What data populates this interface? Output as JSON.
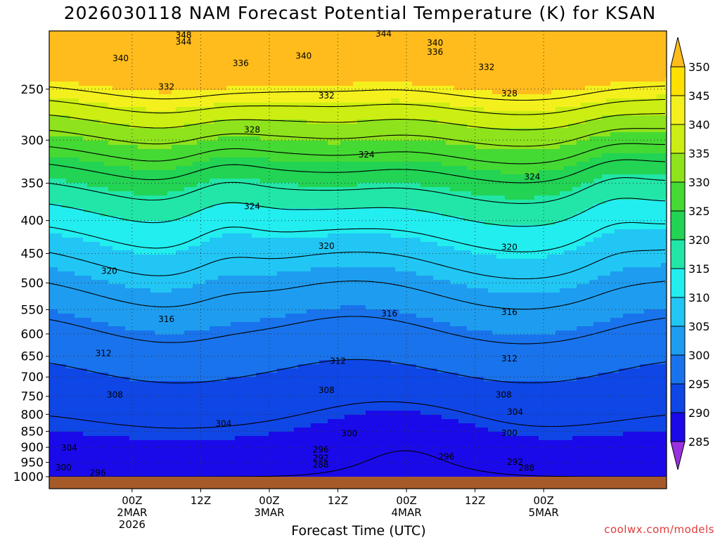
{
  "title": "2026030118 NAM Forecast Potential Temperature (K) for KSAN",
  "xlabel": "Forecast Time (UTC)",
  "credit": "coolwx.com/models",
  "chart_data": {
    "type": "heatmap",
    "variable": "Potential Temperature (K)",
    "y_axis": {
      "label": "",
      "scale": "log-pressure",
      "reversed": true,
      "range": [
        1000,
        200
      ],
      "ticks": [
        250,
        300,
        350,
        400,
        450,
        500,
        550,
        600,
        650,
        700,
        750,
        800,
        850,
        900,
        950,
        1000
      ]
    },
    "x_axis": {
      "range_hours": [
        -8.5,
        99.5
      ],
      "ticks": [
        {
          "hour": 6,
          "lines": [
            "00Z",
            "2MAR",
            "2026"
          ]
        },
        {
          "hour": 18,
          "lines": [
            "12Z"
          ]
        },
        {
          "hour": 30,
          "lines": [
            "00Z",
            "3MAR"
          ]
        },
        {
          "hour": 42,
          "lines": [
            "12Z"
          ]
        },
        {
          "hour": 54,
          "lines": [
            "00Z",
            "4MAR"
          ]
        },
        {
          "hour": 66,
          "lines": [
            "12Z"
          ]
        },
        {
          "hour": 78,
          "lines": [
            "00Z",
            "5MAR"
          ]
        }
      ]
    },
    "colorbar": {
      "levels": [
        285,
        290,
        295,
        300,
        305,
        310,
        315,
        320,
        325,
        330,
        335,
        340,
        345,
        350
      ],
      "colors": [
        "#9a30e0",
        "#6612d6",
        "#1a0aea",
        "#0f46e6",
        "#1973ec",
        "#1e9df0",
        "#22c6f4",
        "#22eef0",
        "#21e6a8",
        "#22d354",
        "#45d934",
        "#8ee31c",
        "#ccee12",
        "#f4f01e",
        "#ffe000",
        "#ffbc1c"
      ]
    },
    "ground_color": "#a65a2a",
    "grid": true,
    "contour_labels": [
      {
        "value": "348",
        "hour": 15,
        "p": 206
      },
      {
        "value": "344",
        "hour": 15,
        "p": 211
      },
      {
        "value": "344",
        "hour": 50,
        "p": 205
      },
      {
        "value": "340",
        "hour": 59,
        "p": 212
      },
      {
        "value": "336",
        "hour": 59,
        "p": 219
      },
      {
        "value": "340",
        "hour": 4,
        "p": 224
      },
      {
        "value": "336",
        "hour": 25,
        "p": 228
      },
      {
        "value": "340",
        "hour": 36,
        "p": 222
      },
      {
        "value": "332",
        "hour": 68,
        "p": 231
      },
      {
        "value": "332",
        "hour": 12,
        "p": 248
      },
      {
        "value": "332",
        "hour": 40,
        "p": 256
      },
      {
        "value": "328",
        "hour": 72,
        "p": 254
      },
      {
        "value": "328",
        "hour": 27,
        "p": 289
      },
      {
        "value": "324",
        "hour": 47,
        "p": 316
      },
      {
        "value": "324",
        "hour": 76,
        "p": 342
      },
      {
        "value": "324",
        "hour": 27,
        "p": 380
      },
      {
        "value": "320",
        "hour": 40,
        "p": 438
      },
      {
        "value": "320",
        "hour": 72,
        "p": 440
      },
      {
        "value": "320",
        "hour": 2,
        "p": 479
      },
      {
        "value": "316",
        "hour": 12,
        "p": 569
      },
      {
        "value": "316",
        "hour": 51,
        "p": 558
      },
      {
        "value": "316",
        "hour": 72,
        "p": 555
      },
      {
        "value": "312",
        "hour": 1,
        "p": 643
      },
      {
        "value": "312",
        "hour": 42,
        "p": 661
      },
      {
        "value": "312",
        "hour": 72,
        "p": 655
      },
      {
        "value": "308",
        "hour": 3,
        "p": 746
      },
      {
        "value": "308",
        "hour": 40,
        "p": 734
      },
      {
        "value": "308",
        "hour": 71,
        "p": 746
      },
      {
        "value": "304",
        "hour": 22,
        "p": 827
      },
      {
        "value": "304",
        "hour": -5,
        "p": 902
      },
      {
        "value": "304",
        "hour": 73,
        "p": 793
      },
      {
        "value": "300",
        "hour": 44,
        "p": 857
      },
      {
        "value": "300",
        "hour": 72,
        "p": 856
      },
      {
        "value": "300",
        "hour": -6,
        "p": 968
      },
      {
        "value": "296",
        "hour": 39,
        "p": 908
      },
      {
        "value": "296",
        "hour": 61,
        "p": 931
      },
      {
        "value": "292",
        "hour": 39,
        "p": 935
      },
      {
        "value": "288",
        "hour": 39,
        "p": 958
      },
      {
        "value": "292",
        "hour": 73,
        "p": 948
      },
      {
        "value": "288",
        "hour": 75,
        "p": 969
      },
      {
        "value": "296",
        "hour": 0,
        "p": 986
      }
    ]
  }
}
